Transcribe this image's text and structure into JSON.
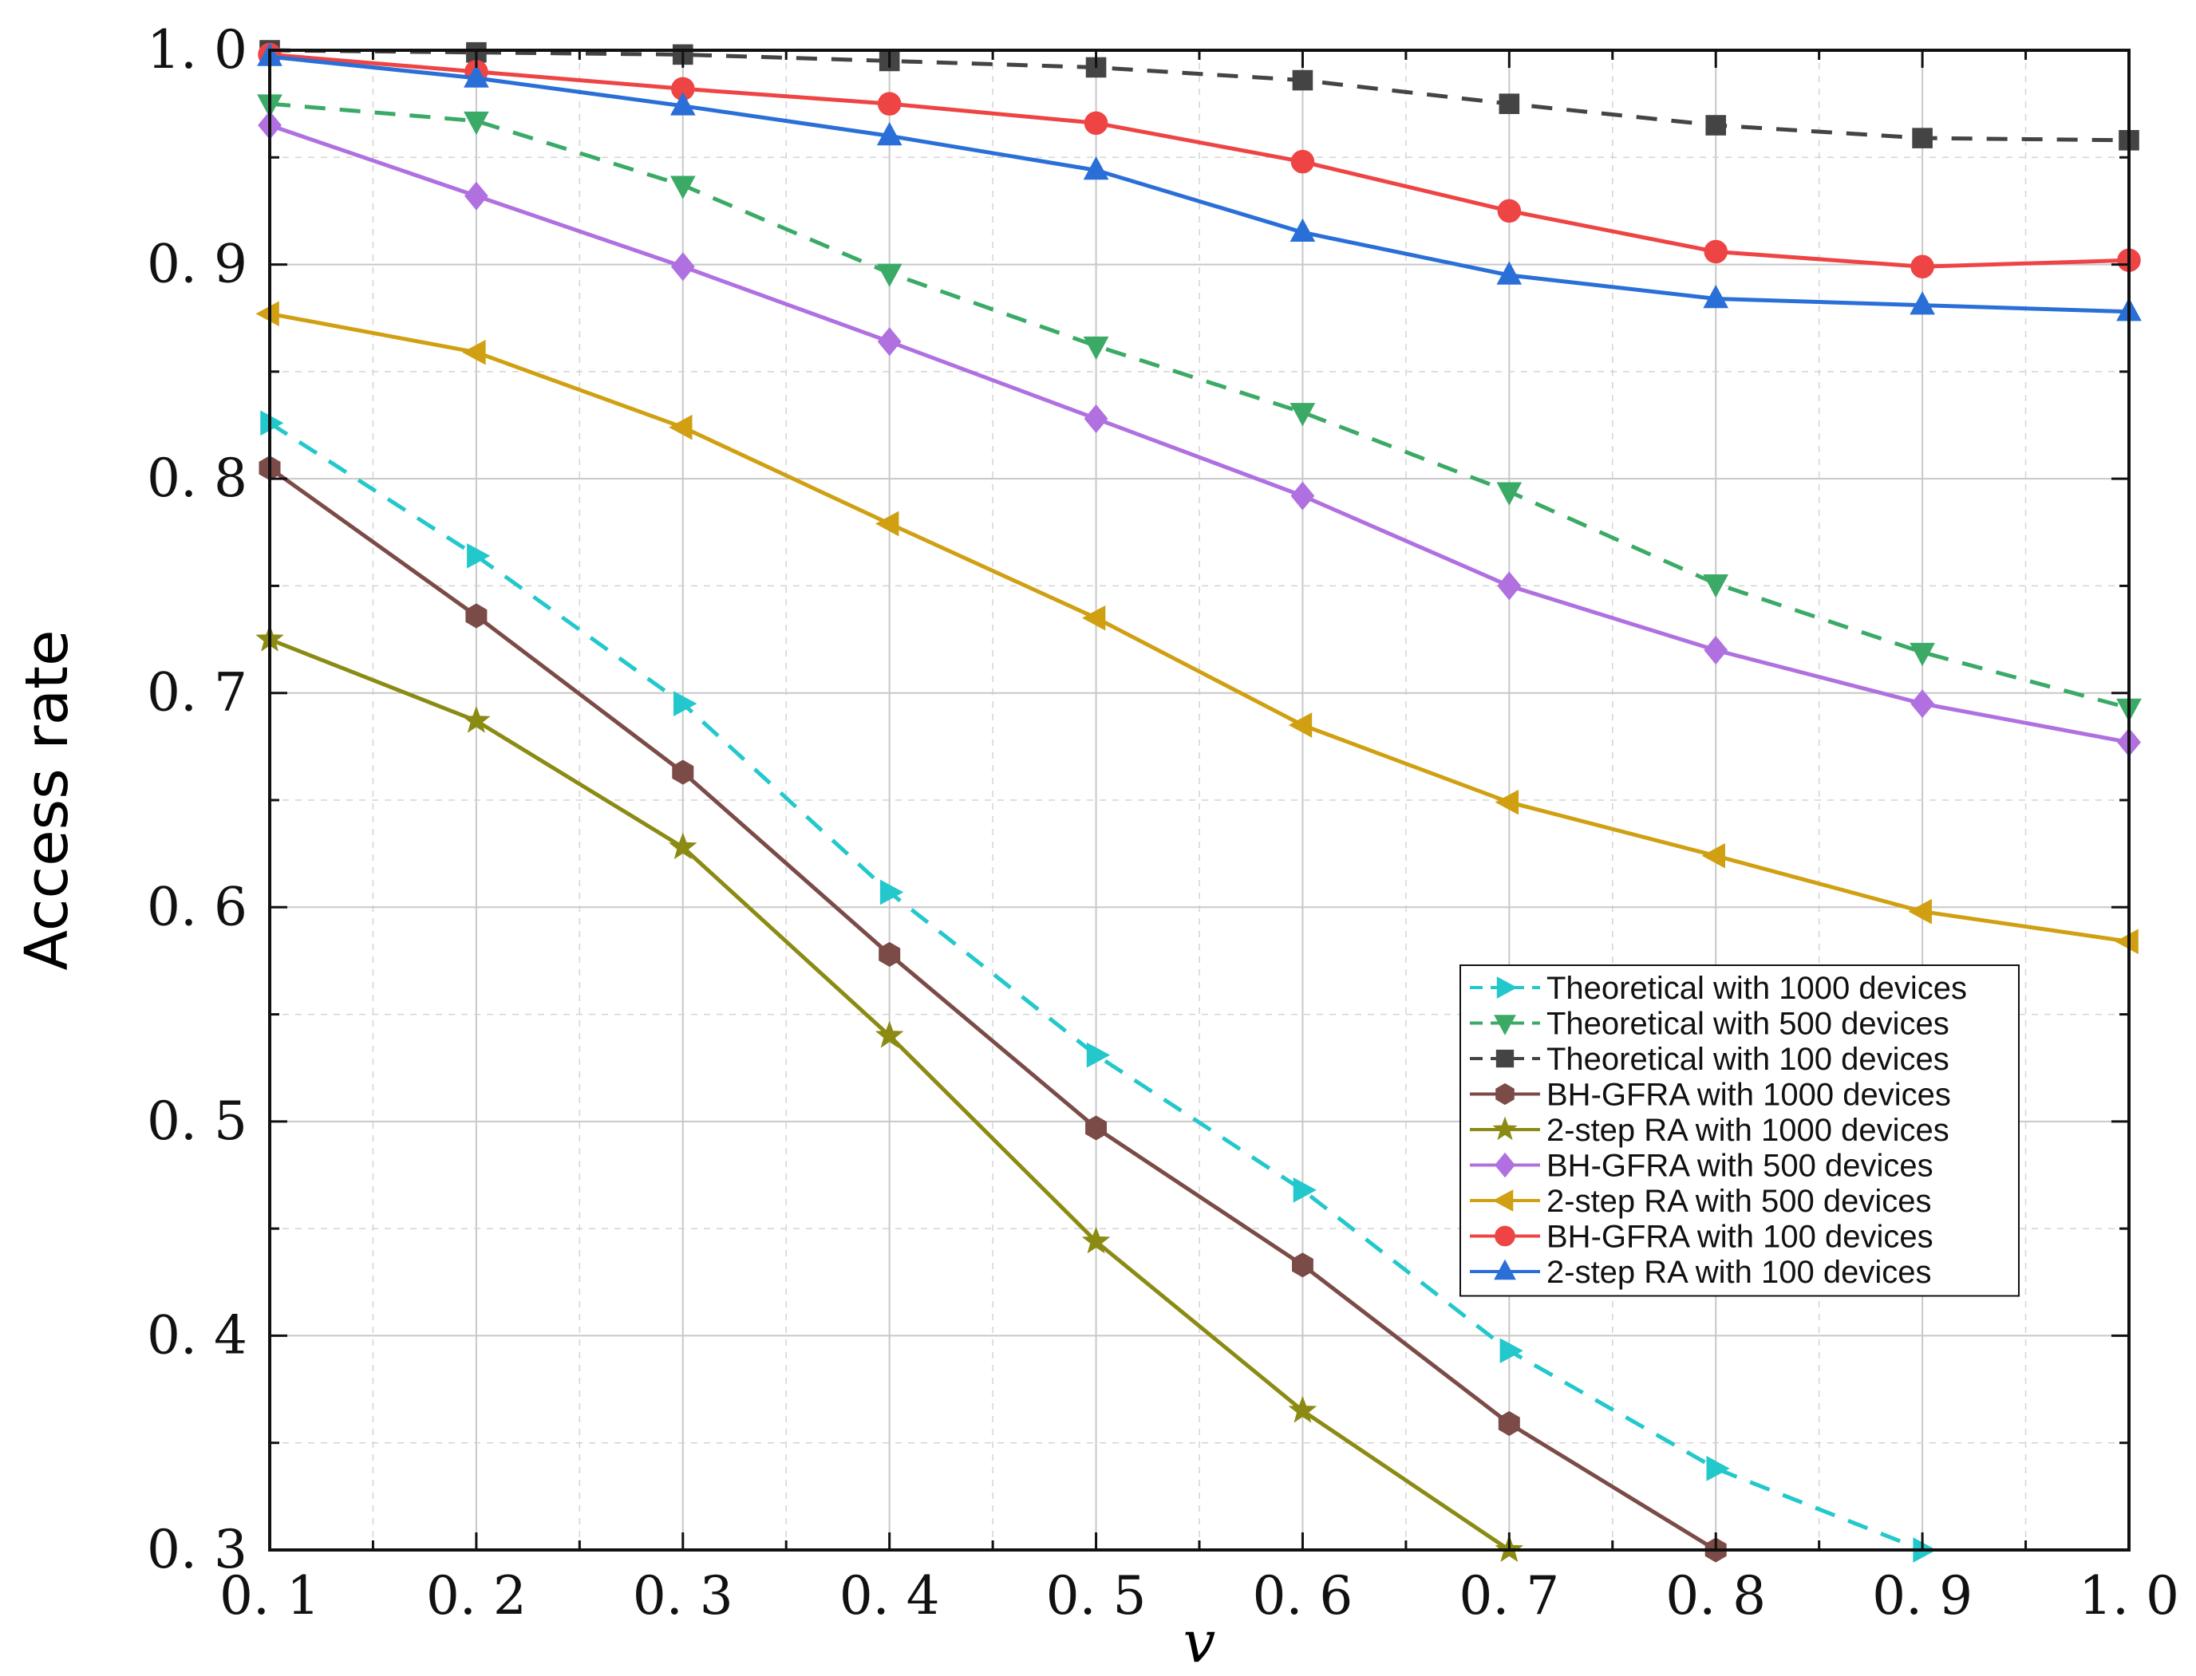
{
  "chart_data": {
    "type": "line",
    "title": "",
    "xlabel": "v",
    "ylabel": "Access rate",
    "xlim": [
      0.1,
      1.0
    ],
    "ylim": [
      0.3,
      1.0
    ],
    "grid": true,
    "legend_position": "bottom-right",
    "x": [
      0.1,
      0.2,
      0.3,
      0.4,
      0.5,
      0.6,
      0.7,
      0.8,
      0.9,
      1.0
    ],
    "xtick_labels": [
      "0. 1",
      "0. 2",
      "0. 3",
      "0. 4",
      "0. 5",
      "0. 6",
      "0. 7",
      "0. 8",
      "0. 9",
      "1. 0"
    ],
    "ytick_values": [
      0.3,
      0.4,
      0.5,
      0.6,
      0.7,
      0.8,
      0.9,
      1.0
    ],
    "ytick_labels": [
      "0. 3",
      "0. 4",
      "0. 5",
      "0. 6",
      "0. 7",
      "0. 8",
      "0. 9",
      "1. 0"
    ],
    "series": [
      {
        "name": "Theoretical with 1000 devices",
        "color": "#22c8cc",
        "marker": "triangle-right",
        "dashed": true,
        "values": [
          0.826,
          0.764,
          0.695,
          0.607,
          0.531,
          0.468,
          0.393,
          0.338,
          0.3,
          null
        ]
      },
      {
        "name": "Theoretical with 500 devices",
        "color": "#3aaa66",
        "marker": "triangle-down",
        "dashed": true,
        "values": [
          0.975,
          0.967,
          0.937,
          0.896,
          0.862,
          0.831,
          0.794,
          0.751,
          0.719,
          0.693
        ]
      },
      {
        "name": "Theoretical with 100 devices",
        "color": "#444444",
        "marker": "square",
        "dashed": true,
        "values": [
          1.0,
          0.999,
          0.998,
          0.995,
          0.992,
          0.986,
          0.975,
          0.965,
          0.959,
          0.958
        ]
      },
      {
        "name": "BH-GFRA with 1000 devices",
        "color": "#7b4b47",
        "marker": "hexagon",
        "dashed": false,
        "values": [
          0.805,
          0.736,
          0.663,
          0.578,
          0.497,
          0.433,
          0.359,
          0.3,
          null,
          null
        ]
      },
      {
        "name": "2-step RA with 1000 devices",
        "color": "#8b8b14",
        "marker": "star",
        "dashed": false,
        "values": [
          0.725,
          0.687,
          0.628,
          0.54,
          0.444,
          0.365,
          0.3,
          null,
          null,
          null
        ]
      },
      {
        "name": "BH-GFRA with 500 devices",
        "color": "#b070e0",
        "marker": "diamond",
        "dashed": false,
        "values": [
          0.965,
          0.932,
          0.899,
          0.864,
          0.828,
          0.792,
          0.75,
          0.72,
          0.695,
          0.677
        ]
      },
      {
        "name": "2-step RA with 500 devices",
        "color": "#d0a012",
        "marker": "triangle-left",
        "dashed": false,
        "values": [
          0.877,
          0.859,
          0.824,
          0.779,
          0.735,
          0.685,
          0.649,
          0.624,
          0.598,
          0.584
        ]
      },
      {
        "name": "BH-GFRA with 100 devices",
        "color": "#ee4444",
        "marker": "circle",
        "dashed": false,
        "values": [
          0.998,
          0.99,
          0.982,
          0.975,
          0.966,
          0.948,
          0.925,
          0.906,
          0.899,
          0.902
        ]
      },
      {
        "name": "2-step RA with 100 devices",
        "color": "#2a6fd8",
        "marker": "triangle-up",
        "dashed": false,
        "values": [
          0.997,
          0.987,
          0.974,
          0.96,
          0.944,
          0.915,
          0.895,
          0.884,
          0.881,
          0.878
        ]
      }
    ]
  }
}
